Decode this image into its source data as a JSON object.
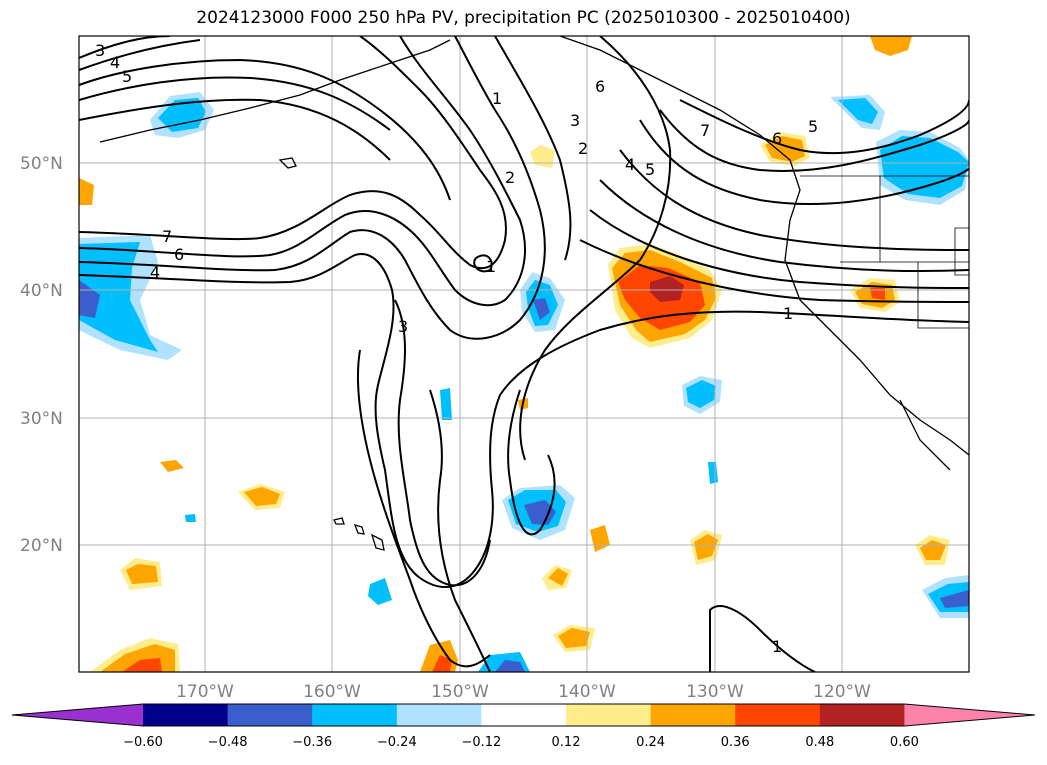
{
  "title": "2024123000 F000 250 hPa PV, precipitation PC (2025010300 - 2025010400)",
  "lat_labels": [
    "50°N",
    "40°N",
    "30°N",
    "20°N"
  ],
  "lon_labels": [
    "170°W",
    "160°W",
    "150°W",
    "140°W",
    "130°W",
    "120°W"
  ],
  "colorbar": {
    "tick_labels": [
      "−0.60",
      "−0.48",
      "−0.36",
      "−0.24",
      "−0.12",
      "0.12",
      "0.24",
      "0.36",
      "0.48",
      "0.60"
    ],
    "colors": [
      "#9b30d0",
      "#00008b",
      "#3a5fcd",
      "#00bfff",
      "#b0e2ff",
      "#ffffff",
      "#ffec8b",
      "#ffa500",
      "#ff4500",
      "#b22222",
      "#ff82ab"
    ]
  },
  "pv_contour_labels": [
    "3",
    "4",
    "5",
    "7",
    "6",
    "4",
    "1",
    "2",
    "3",
    "1",
    "3",
    "2",
    "4",
    "5",
    "6",
    "7",
    "6",
    "5",
    "1",
    "1"
  ],
  "colors": {
    "grid": "#b0b0b0",
    "contour": "#000000",
    "axis_label": "#808080"
  }
}
